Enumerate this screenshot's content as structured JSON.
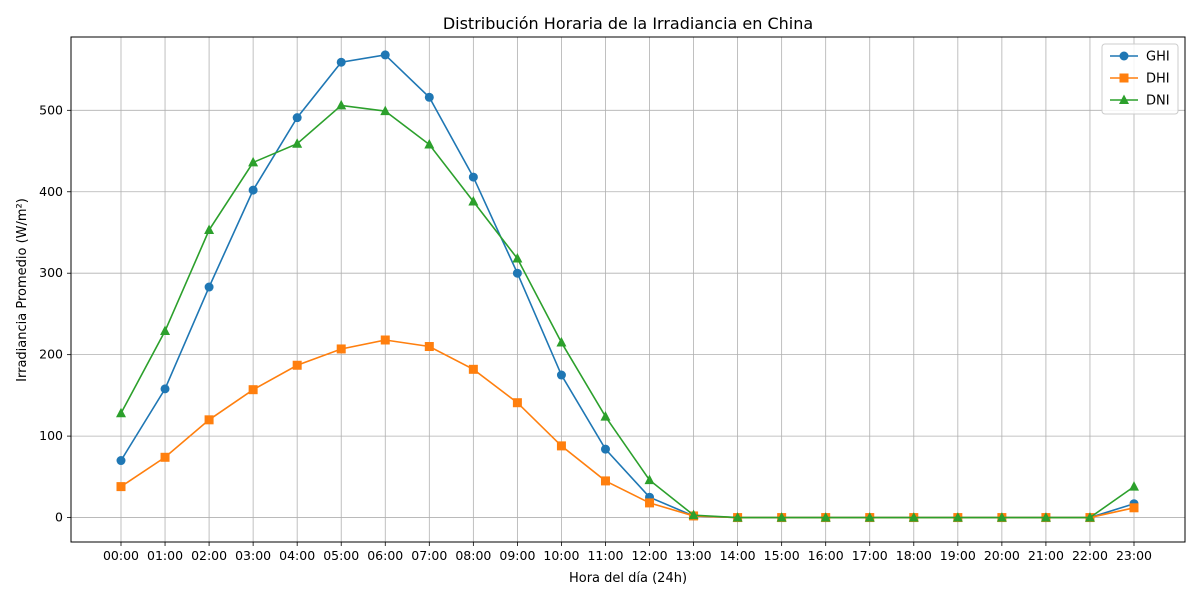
{
  "chart_data": {
    "type": "line",
    "title": "Distribución Horaria de la Irradiancia en China",
    "xlabel": "Hora del día (24h)",
    "ylabel": "Irradiancia Promedio (W/m²)",
    "categories": [
      "00:00",
      "01:00",
      "02:00",
      "03:00",
      "04:00",
      "05:00",
      "06:00",
      "07:00",
      "08:00",
      "09:00",
      "10:00",
      "11:00",
      "12:00",
      "13:00",
      "14:00",
      "15:00",
      "16:00",
      "17:00",
      "18:00",
      "19:00",
      "20:00",
      "21:00",
      "22:00",
      "23:00"
    ],
    "ylim": [
      -30,
      590
    ],
    "yticks": [
      0,
      100,
      200,
      300,
      400,
      500
    ],
    "grid": true,
    "legend_position": "top-right",
    "series": [
      {
        "name": "GHI",
        "color": "#1f77b4",
        "marker": "circle",
        "values": [
          70,
          158,
          283,
          402,
          491,
          559,
          568,
          516,
          418,
          300,
          175,
          84,
          25,
          2,
          0,
          0,
          0,
          0,
          0,
          0,
          0,
          0,
          0,
          17
        ]
      },
      {
        "name": "DHI",
        "color": "#ff7f0e",
        "marker": "square",
        "values": [
          38,
          74,
          120,
          157,
          187,
          207,
          218,
          210,
          182,
          141,
          88,
          45,
          18,
          2,
          0,
          0,
          0,
          0,
          0,
          0,
          0,
          0,
          0,
          12
        ]
      },
      {
        "name": "DNI",
        "color": "#2ca02c",
        "marker": "triangle",
        "values": [
          128,
          229,
          353,
          436,
          459,
          506,
          499,
          458,
          388,
          318,
          215,
          124,
          46,
          3,
          0,
          0,
          0,
          0,
          0,
          0,
          0,
          0,
          0,
          38
        ]
      }
    ]
  }
}
